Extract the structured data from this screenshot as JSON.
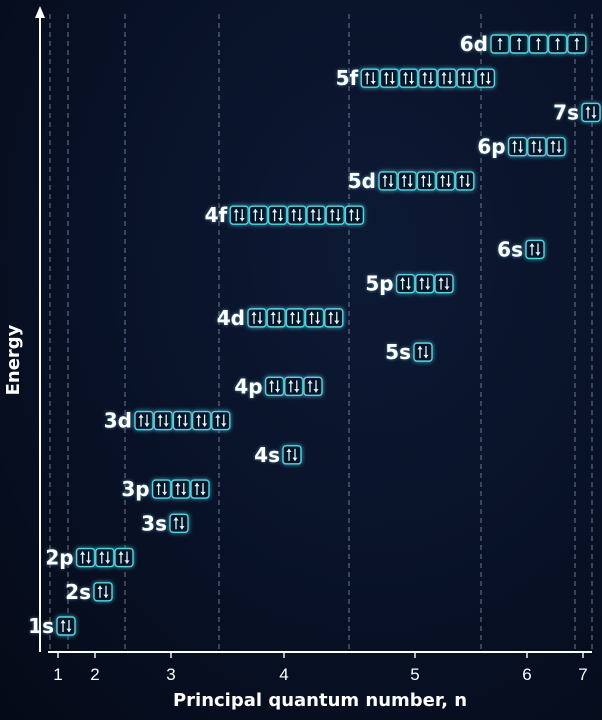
{
  "chart_data": {
    "type": "diagram",
    "ylabel": "Energy",
    "xlabel": "Principal quantum number, n",
    "x_ticks": [
      "1",
      "2",
      "3",
      "4",
      "5",
      "6",
      "7"
    ],
    "orbitals": [
      {
        "label": "1s",
        "n": 1,
        "slots": 1,
        "filling": [
          "ud"
        ]
      },
      {
        "label": "2s",
        "n": 2,
        "slots": 1,
        "filling": [
          "ud"
        ]
      },
      {
        "label": "2p",
        "n": 2,
        "slots": 3,
        "filling": [
          "ud",
          "ud",
          "ud"
        ]
      },
      {
        "label": "3s",
        "n": 3,
        "slots": 1,
        "filling": [
          "ud"
        ]
      },
      {
        "label": "3p",
        "n": 3,
        "slots": 3,
        "filling": [
          "ud",
          "ud",
          "ud"
        ]
      },
      {
        "label": "4s",
        "n": 4,
        "slots": 1,
        "filling": [
          "ud"
        ]
      },
      {
        "label": "3d",
        "n": 3,
        "slots": 5,
        "filling": [
          "ud",
          "ud",
          "ud",
          "ud",
          "ud"
        ]
      },
      {
        "label": "4p",
        "n": 4,
        "slots": 3,
        "filling": [
          "ud",
          "ud",
          "ud"
        ]
      },
      {
        "label": "5s",
        "n": 5,
        "slots": 1,
        "filling": [
          "ud"
        ]
      },
      {
        "label": "4d",
        "n": 4,
        "slots": 5,
        "filling": [
          "ud",
          "ud",
          "ud",
          "ud",
          "ud"
        ]
      },
      {
        "label": "5p",
        "n": 5,
        "slots": 3,
        "filling": [
          "ud",
          "ud",
          "ud"
        ]
      },
      {
        "label": "6s",
        "n": 6,
        "slots": 1,
        "filling": [
          "ud"
        ]
      },
      {
        "label": "4f",
        "n": 4,
        "slots": 7,
        "filling": [
          "ud",
          "ud",
          "ud",
          "ud",
          "ud",
          "ud",
          "ud"
        ]
      },
      {
        "label": "5d",
        "n": 5,
        "slots": 5,
        "filling": [
          "ud",
          "ud",
          "ud",
          "ud",
          "ud"
        ]
      },
      {
        "label": "6p",
        "n": 6,
        "slots": 3,
        "filling": [
          "ud",
          "ud",
          "ud"
        ]
      },
      {
        "label": "7s",
        "n": 7,
        "slots": 1,
        "filling": [
          "ud"
        ]
      },
      {
        "label": "5f",
        "n": 5,
        "slots": 7,
        "filling": [
          "ud",
          "ud",
          "ud",
          "ud",
          "ud",
          "ud",
          "ud"
        ]
      },
      {
        "label": "6d",
        "n": 6,
        "slots": 5,
        "filling": [
          "u",
          "u",
          "u",
          "u",
          "u"
        ]
      }
    ]
  },
  "colors": {
    "background": "#081126",
    "box_border": "#55d4e6",
    "text": "#ffffff",
    "gridline": "#7e8aa6"
  }
}
